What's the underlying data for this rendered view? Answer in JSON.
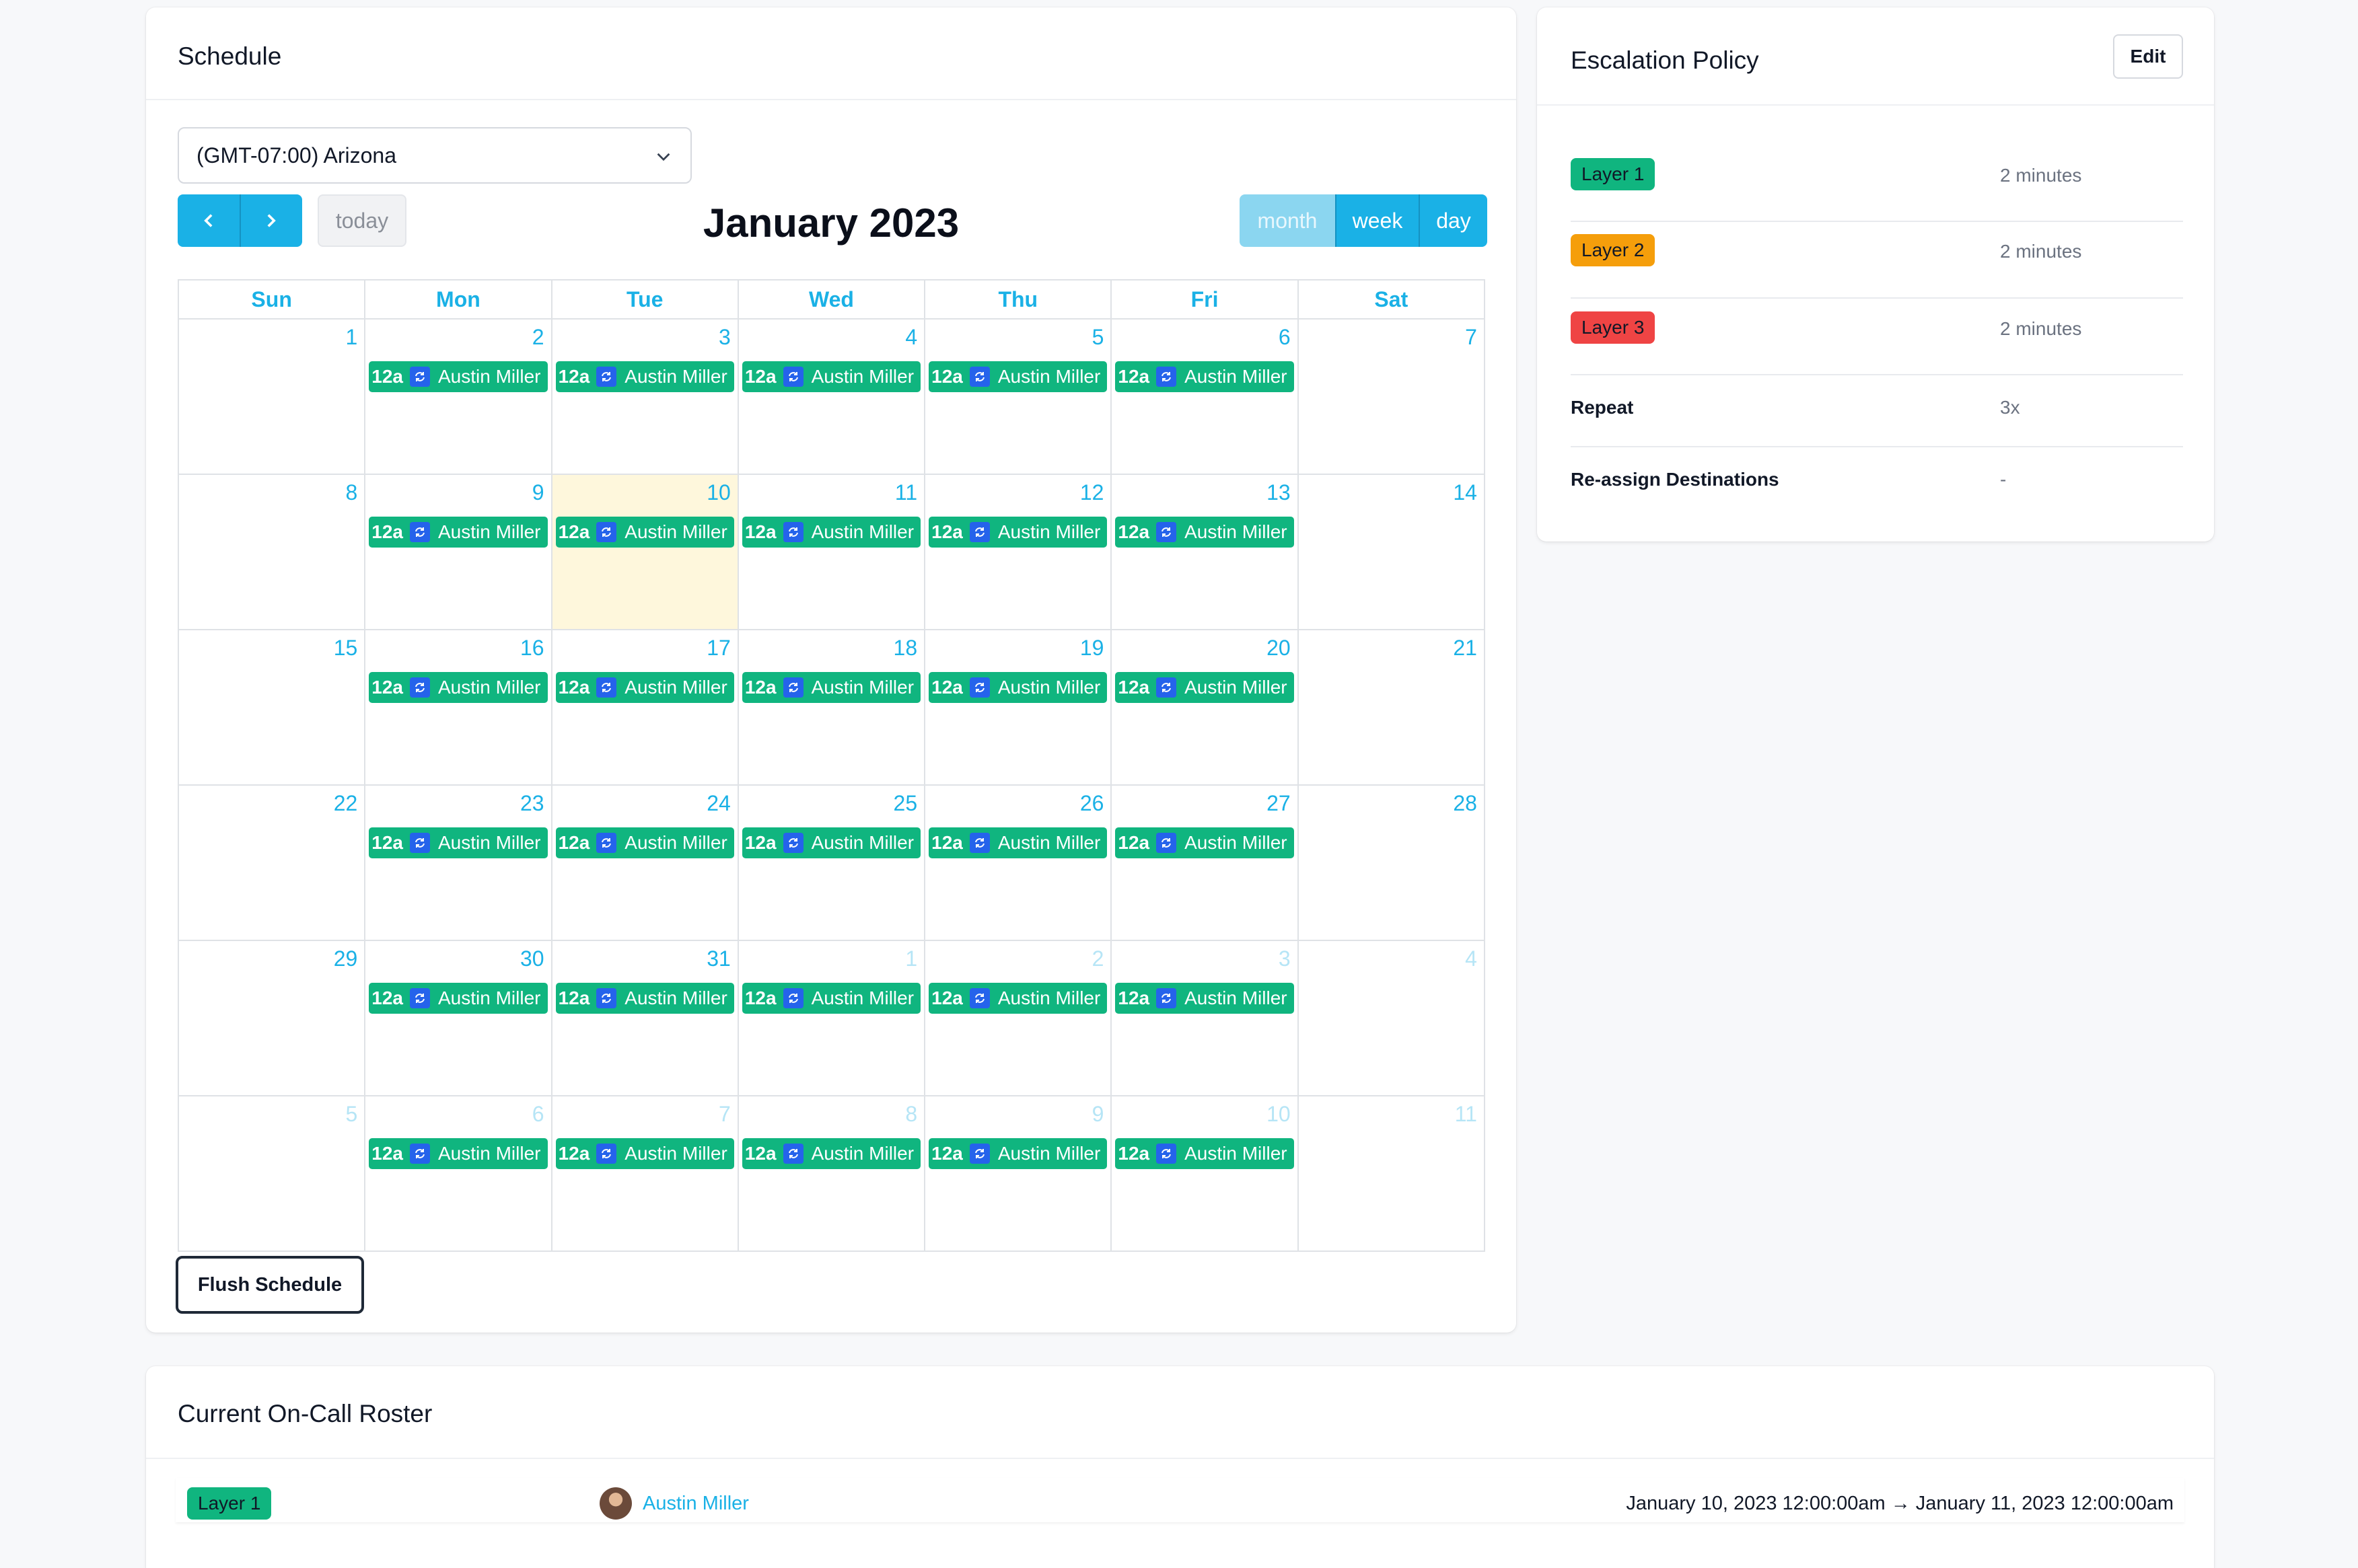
{
  "schedule": {
    "title": "Schedule",
    "timezone": "(GMT-07:00) Arizona",
    "today_label": "today",
    "month_title": "January 2023",
    "views": {
      "month": "month",
      "week": "week",
      "day": "day"
    },
    "days_of_week": [
      "Sun",
      "Mon",
      "Tue",
      "Wed",
      "Thu",
      "Fri",
      "Sat"
    ],
    "weeks": [
      [
        "1",
        "2",
        "3",
        "4",
        "5",
        "6",
        "7"
      ],
      [
        "8",
        "9",
        "10",
        "11",
        "12",
        "13",
        "14"
      ],
      [
        "15",
        "16",
        "17",
        "18",
        "19",
        "20",
        "21"
      ],
      [
        "22",
        "23",
        "24",
        "25",
        "26",
        "27",
        "28"
      ],
      [
        "29",
        "30",
        "31",
        "1",
        "2",
        "3",
        "4"
      ],
      [
        "5",
        "6",
        "7",
        "8",
        "9",
        "10",
        "11"
      ]
    ],
    "event_time": "12a",
    "event_name": "Austin Miller",
    "flush_label": "Flush Schedule",
    "colors": {
      "accent": "#1ab1e6",
      "event": "#10b57f",
      "today_bg": "#fef7dc"
    }
  },
  "escalation": {
    "title": "Escalation Policy",
    "edit_label": "Edit",
    "layers": [
      {
        "label": "Layer 1",
        "value": "2 minutes",
        "color": "#10b57f"
      },
      {
        "label": "Layer 2",
        "value": "2 minutes",
        "color": "#f59e0b"
      },
      {
        "label": "Layer 3",
        "value": "2 minutes",
        "color": "#ef4444"
      }
    ],
    "repeat_label": "Repeat",
    "repeat_value": "3x",
    "reassign_label": "Re-assign Destinations",
    "reassign_value": "-"
  },
  "roster": {
    "title": "Current On-Call Roster",
    "layer": "Layer 1",
    "user": "Austin Miller",
    "period": "January 10, 2023 12:00:00am → January 11, 2023 12:00:00am"
  }
}
